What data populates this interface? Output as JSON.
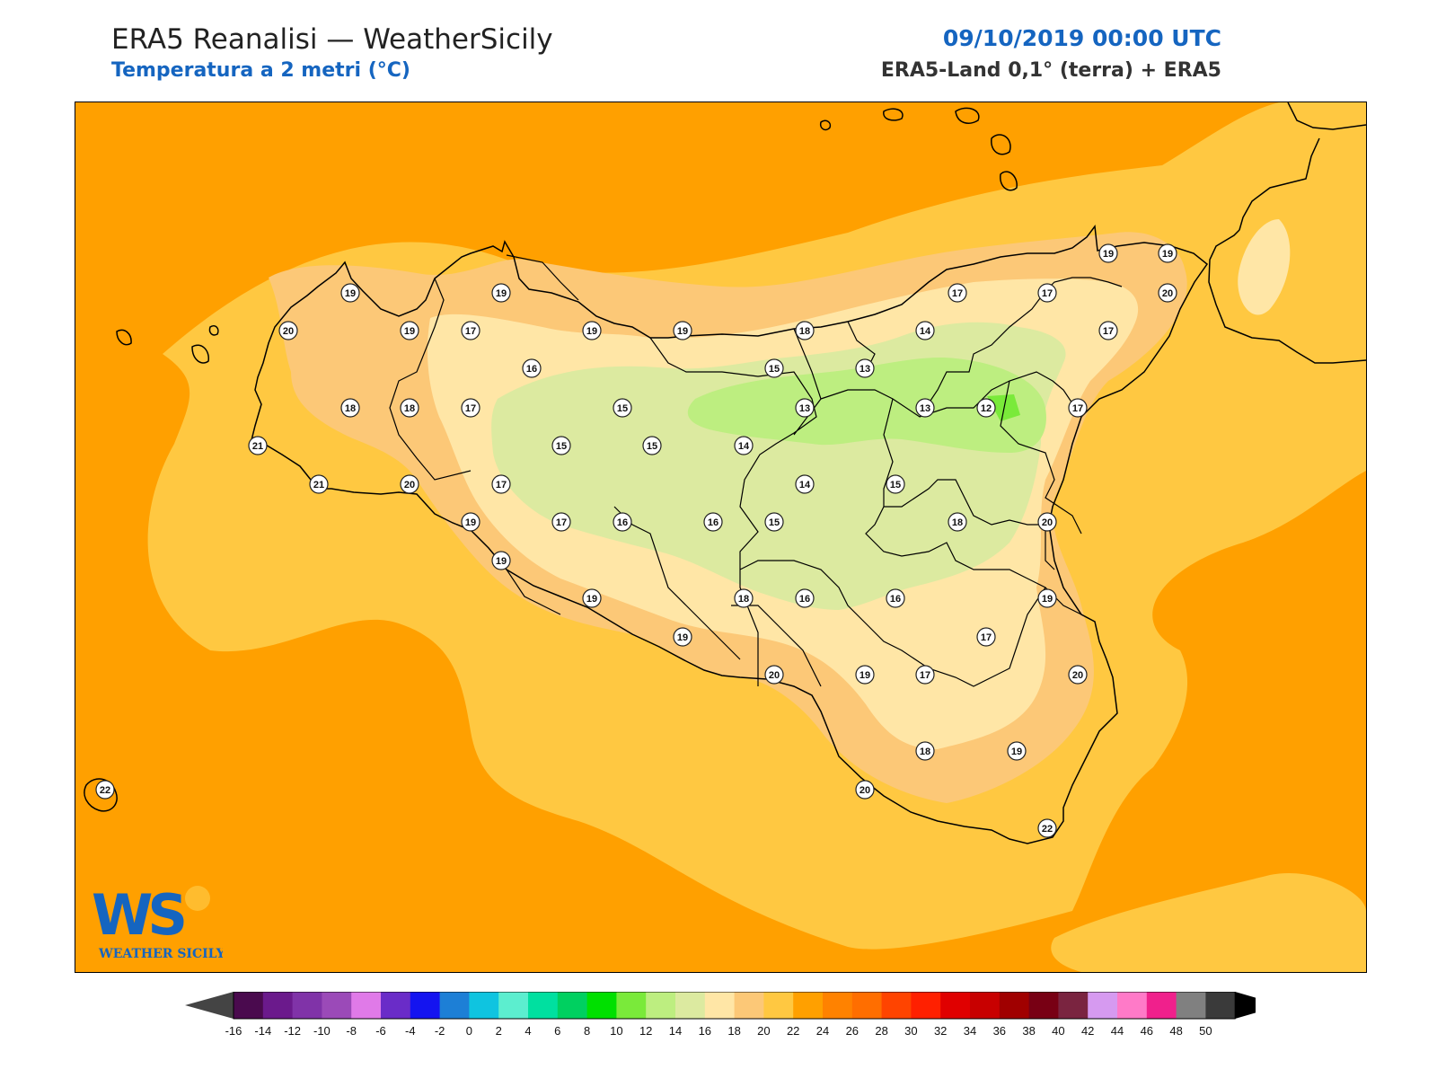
{
  "header": {
    "title": "ERA5 Reanalisi — WeatherSicily",
    "subtitle": "Temperatura a 2 metri (°C)",
    "datetime": "09/10/2019 00:00 UTC",
    "source": "ERA5-Land 0,1° (terra) + ERA5"
  },
  "logo": {
    "text": "WS",
    "caption": "WEATHER SICILY"
  },
  "colorbar": {
    "labels": [
      "-16",
      "-14",
      "-12",
      "-10",
      "-8",
      "-6",
      "-4",
      "-2",
      "0",
      "2",
      "4",
      "6",
      "8",
      "10",
      "12",
      "14",
      "16",
      "18",
      "20",
      "22",
      "24",
      "26",
      "28",
      "30",
      "32",
      "34",
      "36",
      "38",
      "40",
      "42",
      "44",
      "46",
      "48",
      "50"
    ],
    "colors": [
      "#4a0a4e",
      "#6b1a8c",
      "#8033a8",
      "#9b4ab8",
      "#e07ae8",
      "#6a2cc8",
      "#1414f0",
      "#1d7fd6",
      "#0fc4e0",
      "#5ceecf",
      "#00e0a0",
      "#00d060",
      "#00e000",
      "#7aea3a",
      "#bdee80",
      "#dceaa0",
      "#ffe6a6",
      "#fcc877",
      "#ffc841",
      "#ffa000",
      "#ff8200",
      "#ff6e00",
      "#ff4400",
      "#ff2000",
      "#e00000",
      "#c80000",
      "#a00000",
      "#780014",
      "#7a2440",
      "#d69af0",
      "#ff7ac8",
      "#f0208c",
      "#808080",
      "#3a3a3a"
    ],
    "under_color": "#444444",
    "over_color": "#000000"
  },
  "map": {
    "colors": {
      "sea": "#ffa000",
      "level20": "#ffc841",
      "level18": "#fcc877",
      "level16": "#ffe6a6",
      "level14": "#dceaa0",
      "level12": "#bdee80",
      "level10": "#7aea3a",
      "coast": "#000000"
    },
    "stations": [
      {
        "v": "19"
      },
      {
        "v": "19"
      },
      {
        "v": "19"
      },
      {
        "v": "19"
      },
      {
        "v": "17"
      },
      {
        "v": "17"
      },
      {
        "v": "20"
      },
      {
        "v": "20"
      },
      {
        "v": "19"
      },
      {
        "v": "17"
      },
      {
        "v": "19"
      },
      {
        "v": "19"
      },
      {
        "v": "18"
      },
      {
        "v": "14"
      },
      {
        "v": "17"
      },
      {
        "v": "16"
      },
      {
        "v": "15"
      },
      {
        "v": "13"
      },
      {
        "v": "18"
      },
      {
        "v": "18"
      },
      {
        "v": "17"
      },
      {
        "v": "15"
      },
      {
        "v": "13"
      },
      {
        "v": "13"
      },
      {
        "v": "12"
      },
      {
        "v": "17"
      },
      {
        "v": "21"
      },
      {
        "v": "15"
      },
      {
        "v": "15"
      },
      {
        "v": "14"
      },
      {
        "v": "21"
      },
      {
        "v": "20"
      },
      {
        "v": "17"
      },
      {
        "v": "14"
      },
      {
        "v": "15"
      },
      {
        "v": "19"
      },
      {
        "v": "17"
      },
      {
        "v": "16"
      },
      {
        "v": "16"
      },
      {
        "v": "15"
      },
      {
        "v": "18"
      },
      {
        "v": "20"
      },
      {
        "v": "19"
      },
      {
        "v": "19"
      },
      {
        "v": "18"
      },
      {
        "v": "16"
      },
      {
        "v": "16"
      },
      {
        "v": "19"
      },
      {
        "v": "19"
      },
      {
        "v": "17"
      },
      {
        "v": "20"
      },
      {
        "v": "19"
      },
      {
        "v": "17"
      },
      {
        "v": "20"
      },
      {
        "v": "18"
      },
      {
        "v": "19"
      },
      {
        "v": "22"
      },
      {
        "v": "20"
      },
      {
        "v": "22"
      }
    ]
  }
}
